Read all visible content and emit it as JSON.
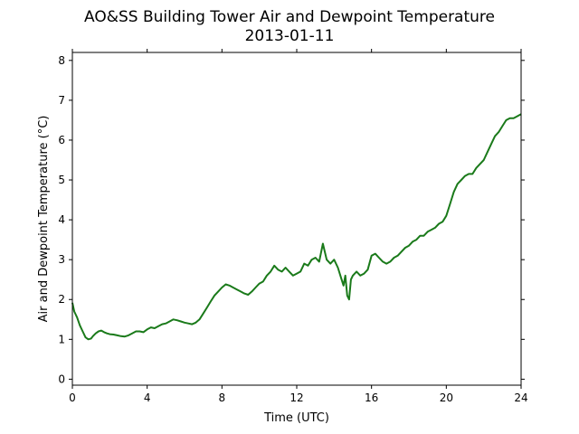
{
  "chart_data": {
    "type": "line",
    "title": "AO&SS Building Tower Air and Dewpoint Temperature",
    "subtitle": "2013-01-11",
    "xlabel": "Time (UTC)",
    "ylabel": "Air and Dewpoint Temperature (°C)",
    "xlim": [
      0,
      24
    ],
    "ylim": [
      -0.15,
      8.2
    ],
    "xticks": [
      0,
      4,
      8,
      12,
      16,
      20,
      24
    ],
    "yticks": [
      0,
      1,
      2,
      3,
      4,
      5,
      6,
      7,
      8
    ],
    "grid": false,
    "legend": "none",
    "colors": {
      "line": "#1a7a1a"
    },
    "series": [
      {
        "x": [
          0,
          0.1,
          0.25,
          0.4,
          0.55,
          0.7,
          0.85,
          1.0,
          1.1,
          1.25,
          1.4,
          1.55,
          1.7,
          1.85,
          2.0,
          2.2,
          2.4,
          2.6,
          2.8,
          3.0,
          3.2,
          3.4,
          3.6,
          3.8,
          4.0,
          4.2,
          4.4,
          4.6,
          4.8,
          5.0,
          5.2,
          5.4,
          5.6,
          5.8,
          6.0,
          6.2,
          6.4,
          6.6,
          6.8,
          7.0,
          7.2,
          7.4,
          7.6,
          7.8,
          8.0,
          8.2,
          8.4,
          8.6,
          8.8,
          9.0,
          9.2,
          9.4,
          9.6,
          9.8,
          10.0,
          10.2,
          10.4,
          10.6,
          10.8,
          11.0,
          11.2,
          11.4,
          11.6,
          11.8,
          12.0,
          12.2,
          12.4,
          12.6,
          12.8,
          13.0,
          13.2,
          13.4,
          13.6,
          13.8,
          14.0,
          14.2,
          14.4,
          14.5,
          14.6,
          14.7,
          14.8,
          14.9,
          15.0,
          15.2,
          15.4,
          15.6,
          15.8,
          16.0,
          16.2,
          16.4,
          16.6,
          16.8,
          17.0,
          17.2,
          17.4,
          17.6,
          17.8,
          18.0,
          18.2,
          18.4,
          18.6,
          18.8,
          19.0,
          19.2,
          19.4,
          19.6,
          19.8,
          20.0,
          20.2,
          20.4,
          20.6,
          20.8,
          21.0,
          21.2,
          21.4,
          21.6,
          21.8,
          22.0,
          22.2,
          22.4,
          22.6,
          22.8,
          23.0,
          23.2,
          23.4,
          23.6,
          23.8,
          24.0
        ],
        "values": [
          1.92,
          1.7,
          1.55,
          1.35,
          1.2,
          1.05,
          1.0,
          1.02,
          1.08,
          1.15,
          1.2,
          1.22,
          1.18,
          1.15,
          1.13,
          1.12,
          1.1,
          1.08,
          1.07,
          1.1,
          1.15,
          1.2,
          1.2,
          1.18,
          1.25,
          1.3,
          1.28,
          1.33,
          1.38,
          1.4,
          1.45,
          1.5,
          1.48,
          1.45,
          1.42,
          1.4,
          1.38,
          1.42,
          1.5,
          1.65,
          1.8,
          1.95,
          2.1,
          2.2,
          2.3,
          2.38,
          2.35,
          2.3,
          2.25,
          2.2,
          2.15,
          2.12,
          2.2,
          2.3,
          2.4,
          2.45,
          2.6,
          2.7,
          2.85,
          2.75,
          2.7,
          2.8,
          2.7,
          2.6,
          2.65,
          2.7,
          2.9,
          2.85,
          3.0,
          3.05,
          2.95,
          3.4,
          3.0,
          2.9,
          3.0,
          2.8,
          2.5,
          2.35,
          2.6,
          2.1,
          2.0,
          2.5,
          2.6,
          2.7,
          2.6,
          2.65,
          2.75,
          3.1,
          3.15,
          3.05,
          2.95,
          2.9,
          2.95,
          3.05,
          3.1,
          3.2,
          3.3,
          3.35,
          3.45,
          3.5,
          3.6,
          3.6,
          3.7,
          3.75,
          3.8,
          3.9,
          3.95,
          4.1,
          4.4,
          4.7,
          4.9,
          5.0,
          5.1,
          5.15,
          5.15,
          5.3,
          5.4,
          5.5,
          5.7,
          5.9,
          6.1,
          6.2,
          6.35,
          6.5,
          6.55,
          6.55,
          6.6,
          6.65
        ]
      }
    ]
  }
}
